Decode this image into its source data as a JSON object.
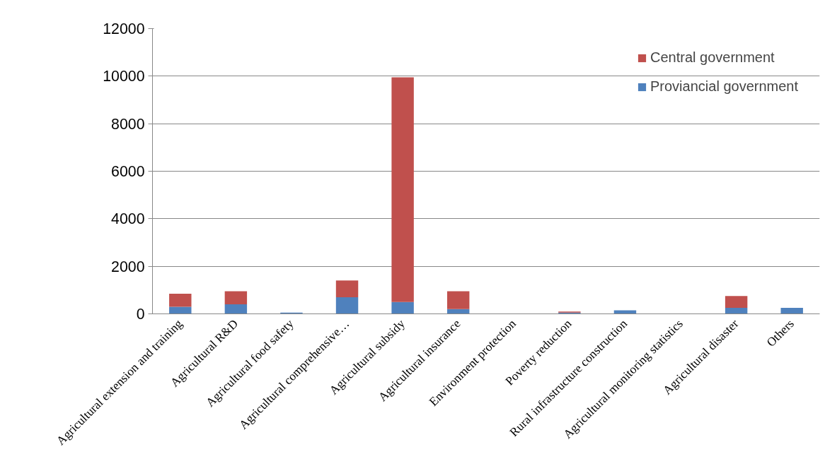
{
  "chart_data": {
    "type": "bar",
    "stacked": true,
    "categories": [
      "Agricultural extension and training",
      "Agricultural R&D",
      "Agricultural food safety",
      "Agricultural comprehensive…",
      "Agricultural subsidy",
      "Agricultural insurance",
      "Environment protection",
      "Poverty reduction",
      "Rural infrastructure construction",
      "Agricultural monitoring statistics",
      "Agricultural disaster",
      "Others"
    ],
    "series": [
      {
        "name": "Proviancial government",
        "color": "#4f81bd",
        "values": [
          300,
          400,
          50,
          700,
          500,
          200,
          0,
          50,
          150,
          0,
          250,
          250
        ]
      },
      {
        "name": "Central government",
        "color": "#c0504d",
        "values": [
          550,
          550,
          0,
          700,
          9450,
          750,
          0,
          50,
          0,
          0,
          500,
          0
        ]
      }
    ],
    "ylim": [
      0,
      12000
    ],
    "yticks": [
      0,
      2000,
      4000,
      6000,
      8000,
      10000,
      12000
    ],
    "grid": "y",
    "legend": "top right"
  }
}
